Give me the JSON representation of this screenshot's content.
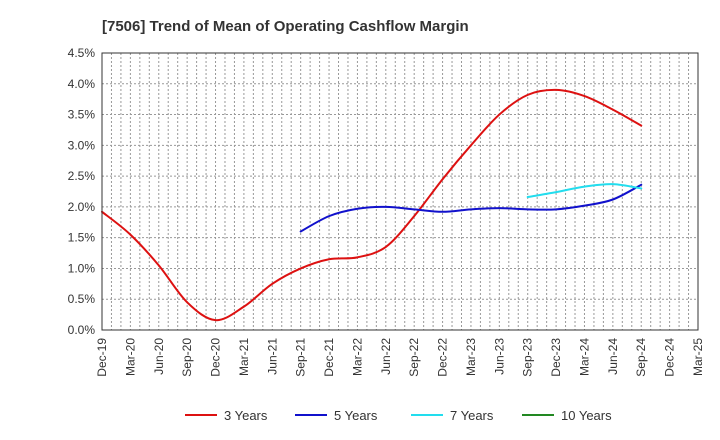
{
  "chart_data": {
    "type": "line",
    "title": "[7506]  Trend of Mean of Operating Cashflow Margin",
    "xlabel": "",
    "ylabel": "",
    "y_tick_labels": [
      "0.0%",
      "0.5%",
      "1.0%",
      "1.5%",
      "2.0%",
      "2.5%",
      "3.0%",
      "3.5%",
      "4.0%",
      "4.5%"
    ],
    "ylim": [
      0,
      4.5
    ],
    "x_tick_labels": [
      "Dec-19",
      "Mar-20",
      "Jun-20",
      "Sep-20",
      "Dec-20",
      "Mar-21",
      "Jun-21",
      "Sep-21",
      "Dec-21",
      "Mar-22",
      "Jun-22",
      "Sep-22",
      "Dec-22",
      "Mar-23",
      "Jun-23",
      "Sep-23",
      "Dec-23",
      "Mar-24",
      "Jun-24",
      "Sep-24",
      "Dec-24",
      "Mar-25"
    ],
    "grid": true,
    "legend_position": "bottom",
    "series": [
      {
        "name": "3 Years",
        "color": "#dd1111",
        "values": [
          [
            "Dec-19",
            1.92
          ],
          [
            "Mar-20",
            1.55
          ],
          [
            "Jun-20",
            1.05
          ],
          [
            "Sep-20",
            0.45
          ],
          [
            "Dec-20",
            0.16
          ],
          [
            "Mar-21",
            0.38
          ],
          [
            "Jun-21",
            0.75
          ],
          [
            "Sep-21",
            1.0
          ],
          [
            "Dec-21",
            1.15
          ],
          [
            "Mar-22",
            1.18
          ],
          [
            "Jun-22",
            1.35
          ],
          [
            "Sep-22",
            1.85
          ],
          [
            "Dec-22",
            2.45
          ],
          [
            "Mar-23",
            3.0
          ],
          [
            "Jun-23",
            3.5
          ],
          [
            "Sep-23",
            3.82
          ],
          [
            "Dec-23",
            3.9
          ],
          [
            "Mar-24",
            3.8
          ],
          [
            "Jun-24",
            3.58
          ],
          [
            "Sep-24",
            3.32
          ]
        ]
      },
      {
        "name": "5 Years",
        "color": "#1111cc",
        "values": [
          [
            "Sep-21",
            1.6
          ],
          [
            "Dec-21",
            1.85
          ],
          [
            "Mar-22",
            1.97
          ],
          [
            "Jun-22",
            2.0
          ],
          [
            "Sep-22",
            1.96
          ],
          [
            "Dec-22",
            1.92
          ],
          [
            "Mar-23",
            1.96
          ],
          [
            "Jun-23",
            1.98
          ],
          [
            "Sep-23",
            1.96
          ],
          [
            "Dec-23",
            1.96
          ],
          [
            "Mar-24",
            2.02
          ],
          [
            "Jun-24",
            2.12
          ],
          [
            "Sep-24",
            2.36
          ]
        ]
      },
      {
        "name": "7 Years",
        "color": "#22ddee",
        "values": [
          [
            "Sep-23",
            2.16
          ],
          [
            "Dec-23",
            2.24
          ],
          [
            "Mar-24",
            2.33
          ],
          [
            "Jun-24",
            2.37
          ],
          [
            "Sep-24",
            2.3
          ]
        ]
      },
      {
        "name": "10 Years",
        "color": "#228822",
        "values": []
      }
    ]
  }
}
